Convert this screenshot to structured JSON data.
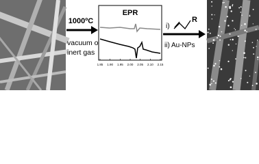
{
  "left_step": {
    "temperature": "1000ºC",
    "condition_line1": "vacuum or",
    "condition_line2": "inert gas"
  },
  "epr": {
    "title": "EPR",
    "x_ticks": [
      "1.85",
      "1.90",
      "1.95",
      "2.00",
      "2.05",
      "2.10",
      "2.15"
    ]
  },
  "right_step": {
    "step1_label": "i)",
    "substituent": "R",
    "step2": "ii) Au-NPs"
  }
}
